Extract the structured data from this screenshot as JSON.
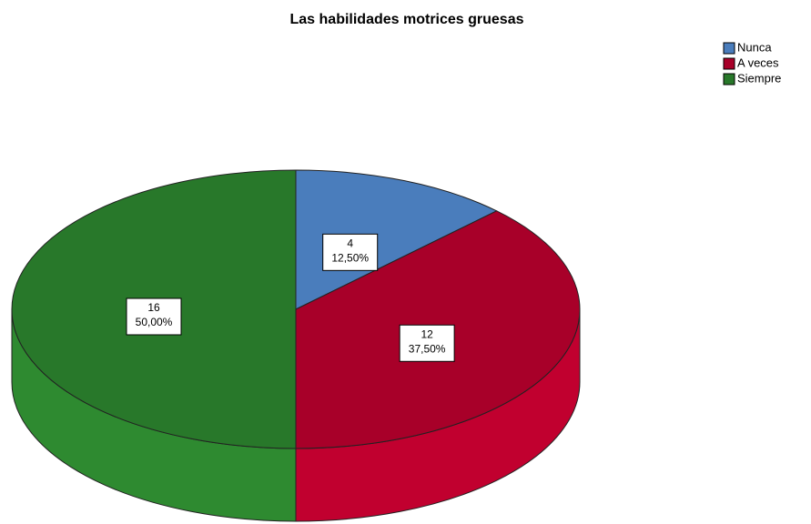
{
  "chart_data": {
    "type": "pie",
    "title": "Las habilidades motrices gruesas",
    "categories": [
      "Nunca",
      "A veces",
      "Siempre"
    ],
    "values": [
      4,
      12,
      16
    ],
    "percentages": [
      {
        "value": 12.5,
        "label": "12,50%"
      },
      {
        "value": 37.5,
        "label": "37,50%"
      },
      {
        "value": 50,
        "label": "50,00%"
      }
    ],
    "colors": [
      "#4a7dbc",
      "#a80029",
      "#28782a"
    ],
    "legend": "top-right"
  }
}
